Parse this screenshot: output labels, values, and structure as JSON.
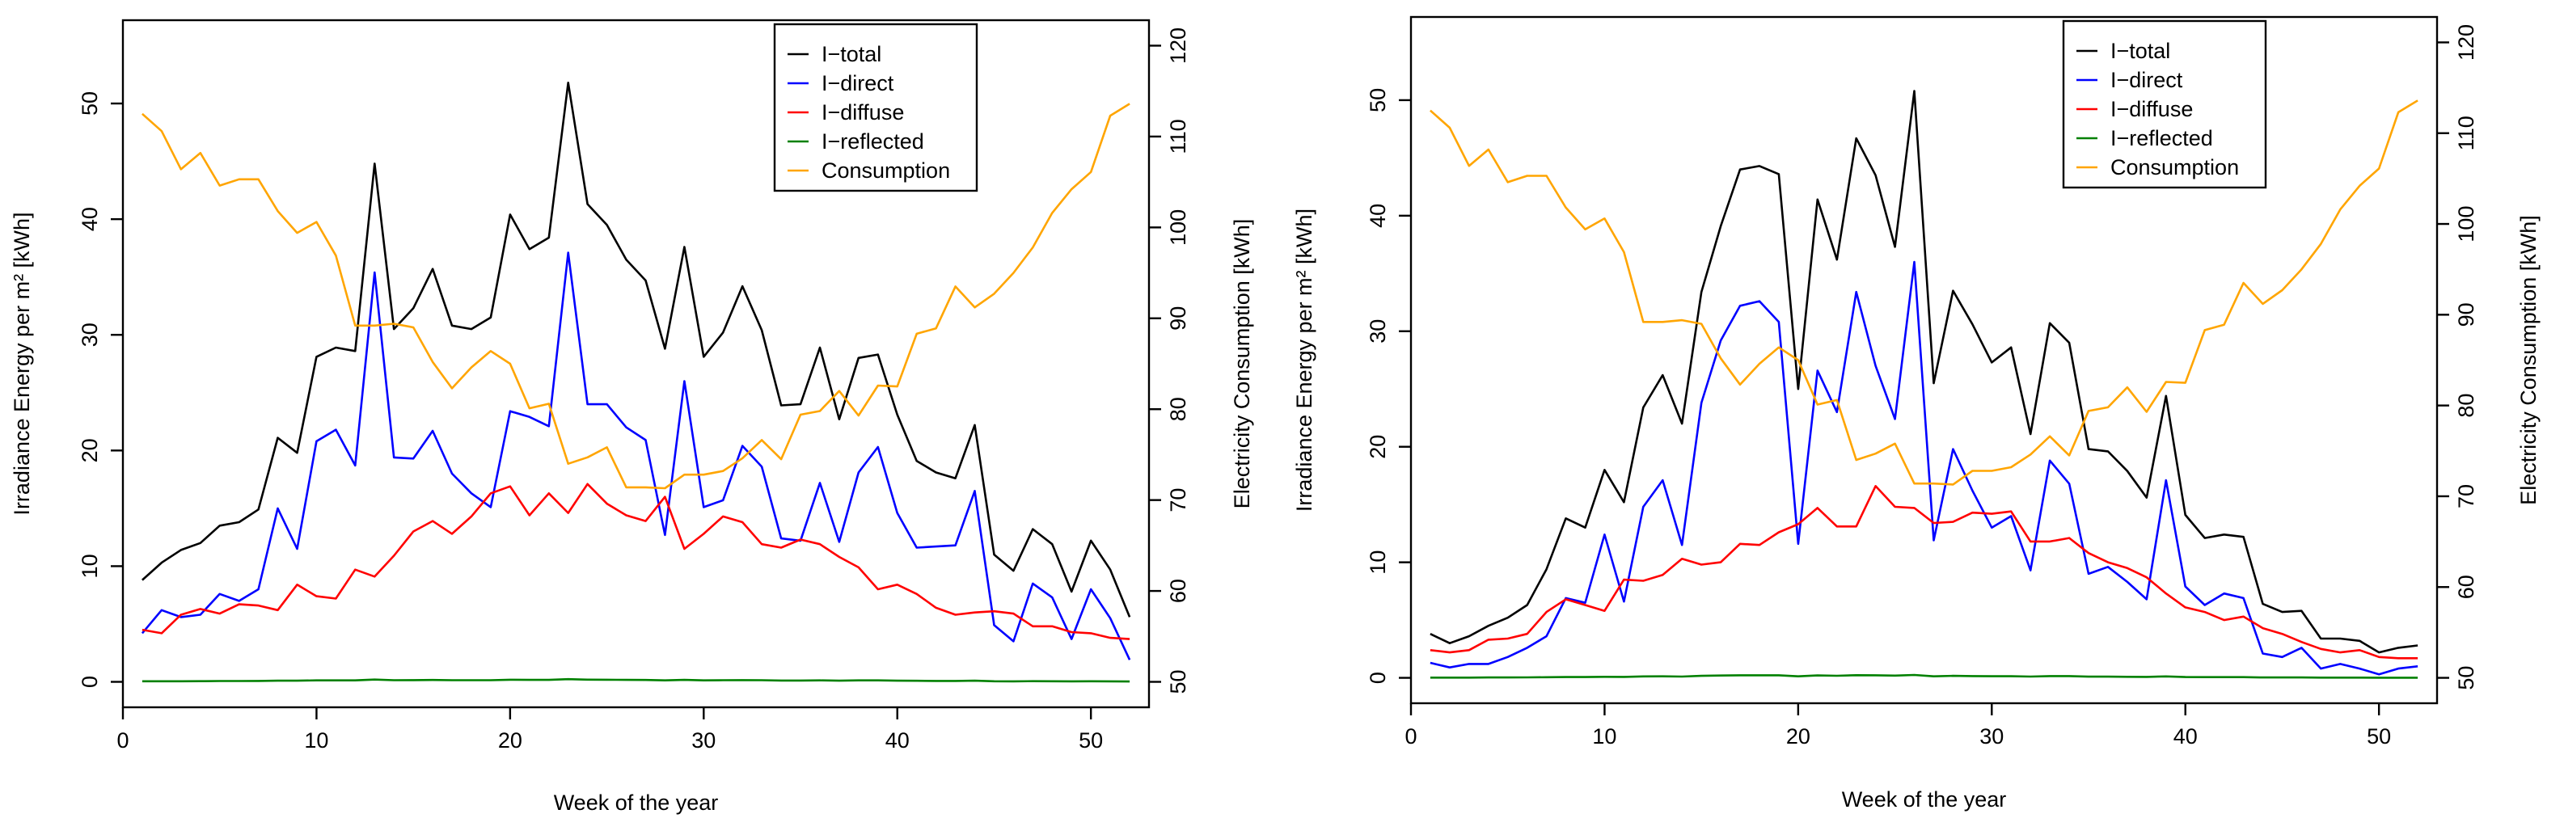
{
  "legend_labels": [
    "I−total",
    "I−direct",
    "I−diffuse",
    "I−reflected",
    "Consumption"
  ],
  "colors": {
    "total": "#000000",
    "direct": "#0000ff",
    "diffuse": "#ff0000",
    "reflected": "#008000",
    "consumption": "#ffa500"
  },
  "chart_data": [
    {
      "type": "line",
      "title": "",
      "xlabel": "Week of the year",
      "ylabel": "Irradiance Energy per m² [kWh]",
      "y2label": "Electricity Consumption [kWh]",
      "xlim": [
        1,
        52
      ],
      "ylim": [
        0,
        55
      ],
      "y2lim": [
        50,
        120
      ],
      "x_ticks": [
        0,
        10,
        20,
        30,
        40,
        50
      ],
      "y_ticks": [
        0,
        10,
        20,
        30,
        40,
        50
      ],
      "y2_ticks": [
        50,
        60,
        70,
        80,
        90,
        100,
        110,
        120
      ],
      "legend_position": "top-center",
      "grid": false,
      "x": [
        1,
        2,
        3,
        4,
        5,
        6,
        7,
        8,
        9,
        10,
        11,
        12,
        13,
        14,
        15,
        16,
        17,
        18,
        19,
        20,
        21,
        22,
        23,
        24,
        25,
        26,
        27,
        28,
        29,
        30,
        31,
        32,
        33,
        34,
        35,
        36,
        37,
        38,
        39,
        40,
        41,
        42,
        43,
        44,
        45,
        46,
        47,
        48,
        49,
        50,
        51,
        52
      ],
      "series": [
        {
          "key": "total",
          "axis": "left",
          "values": [
            8.8,
            10.3,
            11.4,
            12.0,
            13.5,
            13.8,
            14.9,
            21.1,
            19.8,
            28.1,
            28.9,
            28.6,
            44.8,
            30.5,
            32.3,
            35.7,
            30.8,
            30.5,
            31.5,
            40.4,
            37.4,
            38.4,
            51.8,
            41.3,
            39.5,
            36.5,
            34.7,
            28.8,
            37.6,
            28.1,
            30.2,
            34.2,
            30.4,
            23.9,
            24.0,
            28.9,
            22.7,
            28.0,
            28.3,
            23.1,
            19.1,
            18.1,
            17.6,
            22.2,
            11.0,
            9.6,
            13.2,
            11.9,
            7.8,
            12.2,
            9.7,
            5.6
          ]
        },
        {
          "key": "direct",
          "axis": "left",
          "values": [
            4.2,
            6.2,
            5.6,
            5.8,
            7.6,
            7.0,
            8.0,
            15.0,
            11.5,
            20.8,
            21.8,
            18.7,
            35.4,
            19.4,
            19.3,
            21.7,
            18.0,
            16.3,
            15.1,
            23.4,
            22.9,
            22.1,
            37.1,
            24.0,
            24.0,
            22.0,
            20.9,
            12.7,
            26.0,
            15.1,
            15.7,
            20.4,
            18.6,
            12.4,
            12.2,
            17.2,
            12.1,
            18.1,
            20.3,
            14.6,
            11.6,
            11.7,
            11.8,
            16.5,
            4.9,
            3.5,
            8.5,
            7.3,
            3.7,
            8.0,
            5.5,
            1.9
          ]
        },
        {
          "key": "diffuse",
          "axis": "left",
          "values": [
            4.5,
            4.2,
            5.8,
            6.3,
            5.9,
            6.7,
            6.6,
            6.2,
            8.4,
            7.4,
            7.2,
            9.7,
            9.1,
            10.9,
            13.0,
            13.9,
            12.8,
            14.3,
            16.3,
            16.9,
            14.4,
            16.3,
            14.6,
            17.1,
            15.4,
            14.4,
            13.9,
            16.0,
            11.5,
            12.8,
            14.3,
            13.8,
            11.9,
            11.6,
            12.3,
            11.9,
            10.8,
            9.9,
            8.0,
            8.4,
            7.6,
            6.4,
            5.8,
            6.0,
            6.1,
            5.9,
            4.8,
            4.8,
            4.3,
            4.2,
            3.8,
            3.7
          ]
        },
        {
          "key": "reflected",
          "axis": "left",
          "values": [
            0.05,
            0.05,
            0.05,
            0.06,
            0.07,
            0.07,
            0.08,
            0.1,
            0.1,
            0.13,
            0.13,
            0.13,
            0.2,
            0.14,
            0.15,
            0.16,
            0.14,
            0.14,
            0.14,
            0.18,
            0.17,
            0.17,
            0.23,
            0.19,
            0.18,
            0.17,
            0.16,
            0.13,
            0.17,
            0.13,
            0.14,
            0.15,
            0.14,
            0.11,
            0.11,
            0.13,
            0.1,
            0.13,
            0.13,
            0.1,
            0.09,
            0.08,
            0.08,
            0.1,
            0.05,
            0.04,
            0.06,
            0.05,
            0.04,
            0.05,
            0.04,
            0.03
          ]
        },
        {
          "key": "consumption",
          "axis": "right",
          "values": [
            112.5,
            110.6,
            106.4,
            108.2,
            104.6,
            105.3,
            105.3,
            101.8,
            99.4,
            100.6,
            96.9,
            89.2,
            89.2,
            89.4,
            89.0,
            85.2,
            82.3,
            84.6,
            86.4,
            85.0,
            80.1,
            80.6,
            74.0,
            74.7,
            75.8,
            71.4,
            71.4,
            71.3,
            72.8,
            72.8,
            73.2,
            74.6,
            76.6,
            74.5,
            79.4,
            79.8,
            82.0,
            79.3,
            82.6,
            82.5,
            88.3,
            88.9,
            93.5,
            91.2,
            92.7,
            95.0,
            97.8,
            101.6,
            104.2,
            106.1,
            112.3,
            113.6
          ]
        }
      ]
    },
    {
      "type": "line",
      "title": "",
      "xlabel": "Week of the year",
      "ylabel": "Irradiance Energy per m² [kWh]",
      "y2label": "Electricity Consumption [kWh]",
      "xlim": [
        1,
        52
      ],
      "ylim": [
        0,
        55
      ],
      "y2lim": [
        50,
        120
      ],
      "x_ticks": [
        0,
        10,
        20,
        30,
        40,
        50
      ],
      "y_ticks": [
        0,
        10,
        20,
        30,
        40,
        50
      ],
      "y2_ticks": [
        50,
        60,
        70,
        80,
        90,
        100,
        110,
        120
      ],
      "legend_position": "top-center",
      "grid": false,
      "x": [
        1,
        2,
        3,
        4,
        5,
        6,
        7,
        8,
        9,
        10,
        11,
        12,
        13,
        14,
        15,
        16,
        17,
        18,
        19,
        20,
        21,
        22,
        23,
        24,
        25,
        26,
        27,
        28,
        29,
        30,
        31,
        32,
        33,
        34,
        35,
        36,
        37,
        38,
        39,
        40,
        41,
        42,
        43,
        44,
        45,
        46,
        47,
        48,
        49,
        50,
        51,
        52
      ],
      "series": [
        {
          "key": "total",
          "axis": "left",
          "values": [
            3.8,
            3.0,
            3.6,
            4.5,
            5.2,
            6.3,
            9.4,
            13.8,
            13.0,
            18.0,
            15.2,
            23.4,
            26.2,
            22.0,
            33.4,
            39.1,
            44.0,
            44.3,
            43.6,
            25.0,
            41.4,
            36.2,
            46.7,
            43.5,
            37.3,
            50.8,
            25.5,
            33.5,
            30.6,
            27.3,
            28.6,
            21.1,
            30.7,
            29.0,
            19.8,
            19.6,
            17.9,
            15.6,
            24.4,
            14.1,
            12.1,
            12.4,
            12.2,
            6.4,
            5.7,
            5.8,
            3.4,
            3.4,
            3.2,
            2.2,
            2.6,
            2.8
          ]
        },
        {
          "key": "direct",
          "axis": "left",
          "values": [
            1.3,
            0.9,
            1.2,
            1.2,
            1.8,
            2.6,
            3.6,
            6.9,
            6.5,
            12.4,
            6.6,
            14.8,
            17.1,
            11.5,
            23.8,
            29.2,
            32.2,
            32.6,
            30.8,
            11.6,
            26.6,
            23.0,
            33.4,
            27.0,
            22.4,
            36.0,
            11.9,
            19.8,
            16.2,
            13.0,
            14.0,
            9.3,
            18.8,
            16.8,
            9.0,
            9.6,
            8.3,
            6.8,
            17.1,
            7.9,
            6.3,
            7.3,
            6.9,
            2.1,
            1.8,
            2.6,
            0.8,
            1.2,
            0.8,
            0.3,
            0.8,
            1.0
          ]
        },
        {
          "key": "diffuse",
          "axis": "left",
          "values": [
            2.4,
            2.2,
            2.4,
            3.3,
            3.4,
            3.8,
            5.7,
            6.8,
            6.3,
            5.8,
            8.5,
            8.4,
            8.9,
            10.3,
            9.8,
            10.0,
            11.6,
            11.5,
            12.6,
            13.3,
            14.7,
            13.1,
            13.1,
            16.6,
            14.8,
            14.7,
            13.4,
            13.5,
            14.3,
            14.2,
            14.4,
            11.8,
            11.8,
            12.1,
            10.8,
            10.0,
            9.5,
            8.7,
            7.3,
            6.1,
            5.7,
            5.0,
            5.3,
            4.3,
            3.8,
            3.1,
            2.5,
            2.2,
            2.4,
            1.8,
            1.7,
            1.7
          ]
        },
        {
          "key": "reflected",
          "axis": "left",
          "values": [
            0.02,
            0.02,
            0.02,
            0.03,
            0.03,
            0.04,
            0.05,
            0.07,
            0.07,
            0.09,
            0.08,
            0.12,
            0.13,
            0.11,
            0.17,
            0.2,
            0.22,
            0.22,
            0.22,
            0.13,
            0.21,
            0.18,
            0.23,
            0.22,
            0.19,
            0.25,
            0.13,
            0.17,
            0.15,
            0.14,
            0.14,
            0.11,
            0.15,
            0.15,
            0.1,
            0.1,
            0.09,
            0.08,
            0.12,
            0.07,
            0.06,
            0.06,
            0.06,
            0.03,
            0.03,
            0.03,
            0.02,
            0.02,
            0.02,
            0.01,
            0.01,
            0.01
          ]
        },
        {
          "key": "consumption",
          "axis": "right",
          "values": [
            112.5,
            110.6,
            106.4,
            108.2,
            104.6,
            105.3,
            105.3,
            101.8,
            99.4,
            100.6,
            96.9,
            89.2,
            89.2,
            89.4,
            89.0,
            85.2,
            82.3,
            84.6,
            86.4,
            85.0,
            80.1,
            80.6,
            74.0,
            74.7,
            75.8,
            71.4,
            71.4,
            71.3,
            72.8,
            72.8,
            73.2,
            74.6,
            76.6,
            74.5,
            79.4,
            79.8,
            82.0,
            79.3,
            82.6,
            82.5,
            88.3,
            88.9,
            93.5,
            91.2,
            92.7,
            95.0,
            97.8,
            101.6,
            104.2,
            106.1,
            112.3,
            113.6
          ]
        }
      ]
    }
  ]
}
